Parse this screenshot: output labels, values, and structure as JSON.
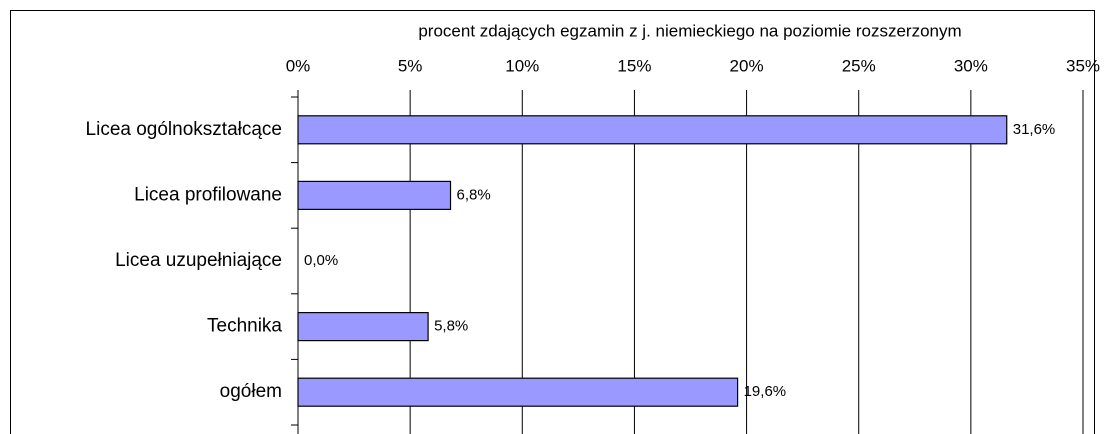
{
  "chart_data": {
    "type": "bar",
    "orientation": "horizontal",
    "title": "procent  zdających egzamin z j. niemieckiego  na poziomie rozszerzonym",
    "categories": [
      "Licea ogólnokształcące",
      "Licea profilowane",
      "Licea uzupełniające",
      "Technika",
      "ogółem"
    ],
    "values": [
      31.6,
      6.8,
      0.0,
      5.8,
      19.6
    ],
    "value_labels": [
      "31,6%",
      "6,8%",
      "0,0%",
      "5,8%",
      "19,6%"
    ],
    "color": "#9999ff",
    "xlim": [
      0,
      35
    ],
    "xticks": [
      {
        "value": 0,
        "label": "0%"
      },
      {
        "value": 5,
        "label": "5%"
      },
      {
        "value": 10,
        "label": "10%"
      },
      {
        "value": 15,
        "label": "15%"
      },
      {
        "value": 20,
        "label": "20%"
      },
      {
        "value": 25,
        "label": "25%"
      },
      {
        "value": 30,
        "label": "30%"
      },
      {
        "value": 35,
        "label": "35%"
      }
    ],
    "grid": true
  }
}
